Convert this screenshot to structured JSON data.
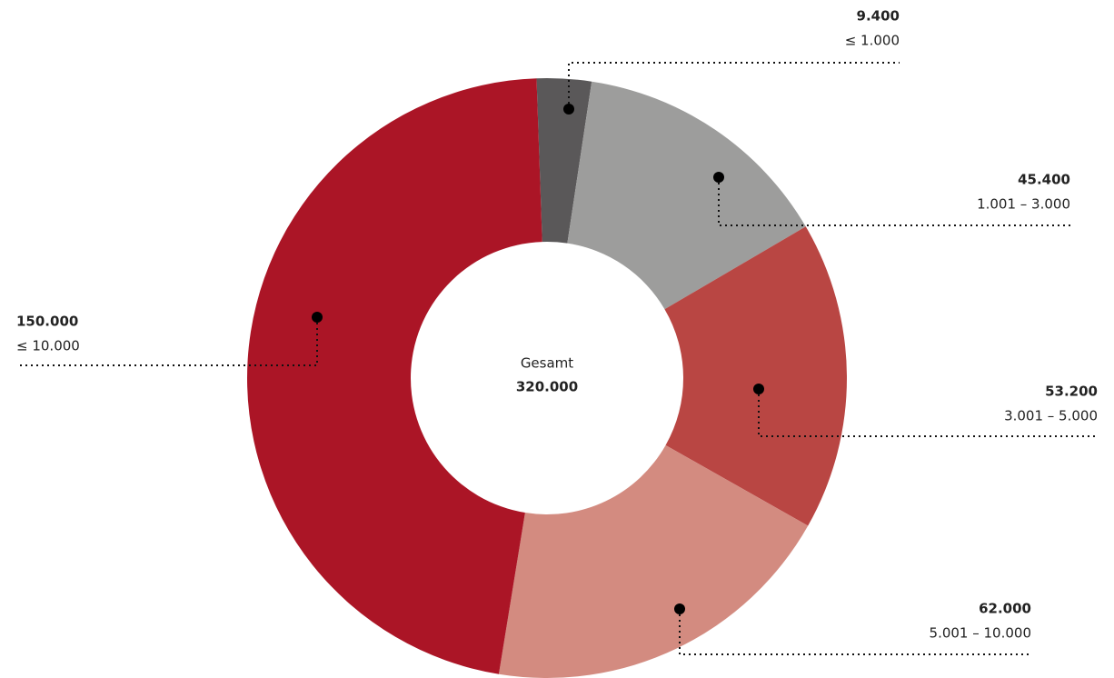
{
  "chart_data": {
    "type": "donut",
    "categories": [
      "≤ 1.000",
      "1.001 – 3.000",
      "3.001 – 5.000",
      "5.001 – 10.000",
      "≤ 10.000"
    ],
    "values": [
      9400,
      45400,
      53200,
      62000,
      150000
    ],
    "value_labels": [
      "9.400",
      "45.400",
      "53.200",
      "62.000",
      "150.000"
    ],
    "colors": [
      "#5a5859",
      "#9d9d9c",
      "#b94643",
      "#d38b80",
      "#ab1526"
    ],
    "center_label": "Gesamt",
    "center_value": "320.000"
  }
}
